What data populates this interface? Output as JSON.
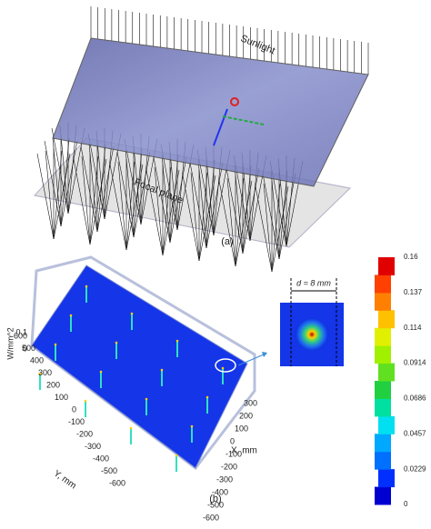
{
  "panel_a": {
    "sunlight_label": "Sunlight",
    "plane_label": "Focal plane",
    "tag": "(a)"
  },
  "panel_b": {
    "tag": "(b)",
    "z_axis": {
      "label": "W/mm^2",
      "ticks": [
        "0.1",
        "0"
      ]
    },
    "y_axis": {
      "label": "Y, mm",
      "ticks": [
        "600",
        "500",
        "400",
        "300",
        "200",
        "100",
        "0",
        "-100",
        "-200",
        "-300",
        "-400",
        "-500",
        "-600"
      ]
    },
    "x_axis": {
      "label": "X, mm",
      "ticks": [
        "300",
        "200",
        "100",
        "0",
        "-100",
        "-200",
        "-300",
        "-400",
        "-500",
        "-600"
      ]
    },
    "inset": {
      "label": "d = 8 mm"
    },
    "colorbar": {
      "ticks": [
        "0.16",
        "0.137",
        "0.114",
        "0.0914",
        "0.0686",
        "0.0457",
        "0.0229",
        "0"
      ]
    }
  }
}
